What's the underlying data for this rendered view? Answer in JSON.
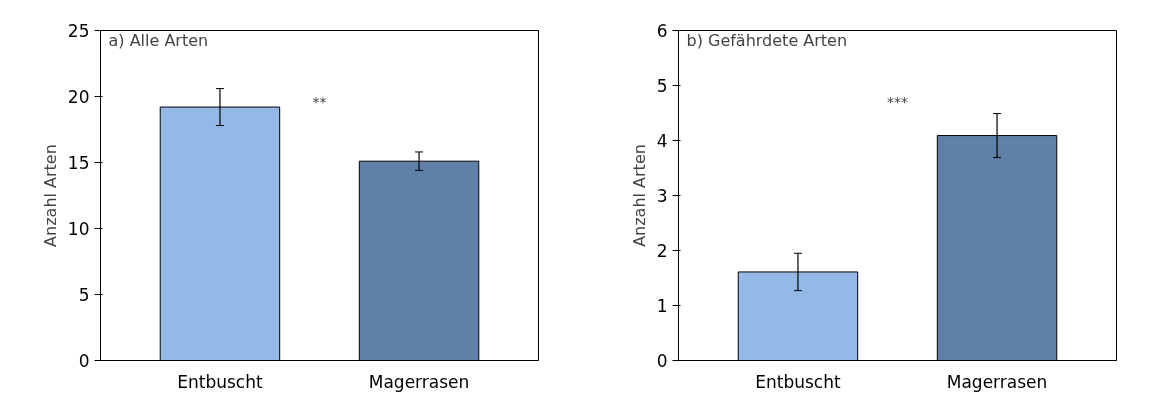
{
  "chart_data": [
    {
      "type": "bar",
      "title": "a) Alle Arten",
      "ylabel": "Anzahl Arten",
      "categories": [
        "Entbuscht",
        "Magerrasen"
      ],
      "values": [
        19.2,
        15.1
      ],
      "colors": [
        "#95b9e6",
        "#5f81a8"
      ],
      "errors": [
        1.4,
        0.7
      ],
      "ylim": [
        0,
        25
      ],
      "yticks": [
        0,
        5,
        10,
        15,
        20,
        25
      ],
      "grid": false,
      "annotations": [
        "**"
      ]
    },
    {
      "type": "bar",
      "title": "b) Gefährdete Arten",
      "ylabel": "Anzahl Arten",
      "categories": [
        "Entbuscht",
        "Magerrasen"
      ],
      "values": [
        1.61,
        4.09
      ],
      "colors": [
        "#95b9e6",
        "#5f81a8"
      ],
      "errors": [
        0.34,
        0.4
      ],
      "ylim": [
        0,
        6
      ],
      "yticks": [
        0,
        1,
        2,
        3,
        4,
        5,
        6
      ],
      "grid": false,
      "annotations": [
        "***"
      ]
    }
  ]
}
